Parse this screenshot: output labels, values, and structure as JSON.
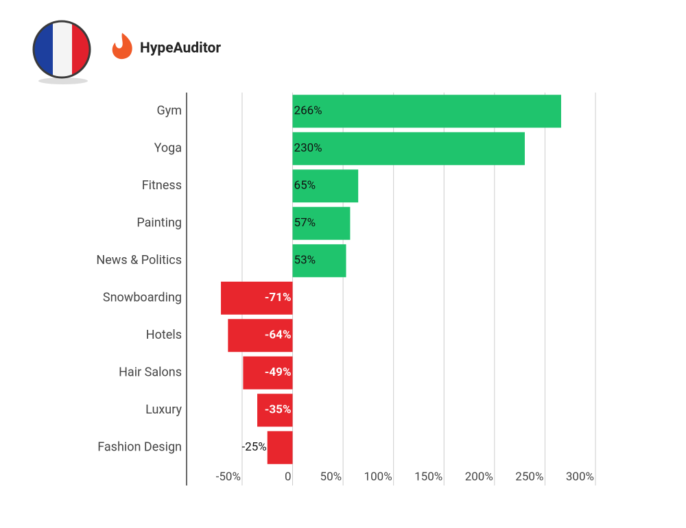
{
  "brand": "HypeAuditor",
  "chart_data": {
    "type": "barh",
    "categories": [
      "Gym",
      "Yoga",
      "Fitness",
      "Painting",
      "News & Politics",
      "Snowboarding",
      "Hotels",
      "Hair Salons",
      "Luxury",
      "Fashion Design"
    ],
    "values": [
      266,
      230,
      65,
      57,
      53,
      -71,
      -64,
      -49,
      -35,
      -25
    ],
    "value_labels": [
      "266%",
      "230%",
      "65%",
      "57%",
      "53%",
      "-71%",
      "-64%",
      "-49%",
      "-35%",
      "-25%"
    ],
    "positive_color": "#1fc46d",
    "negative_color": "#e8262d",
    "xlim": [
      -105,
      300
    ],
    "xticks": [
      {
        "value": -50,
        "label": "-50%"
      },
      0,
      {
        "value": 50,
        "label": "50%"
      },
      {
        "value": 100,
        "label": "100%"
      },
      {
        "value": 150,
        "label": "150%"
      },
      {
        "value": 200,
        "label": "200%"
      },
      {
        "value": 250,
        "label": "250%"
      },
      {
        "value": 300,
        "label": "300%"
      }
    ],
    "grid": true
  }
}
